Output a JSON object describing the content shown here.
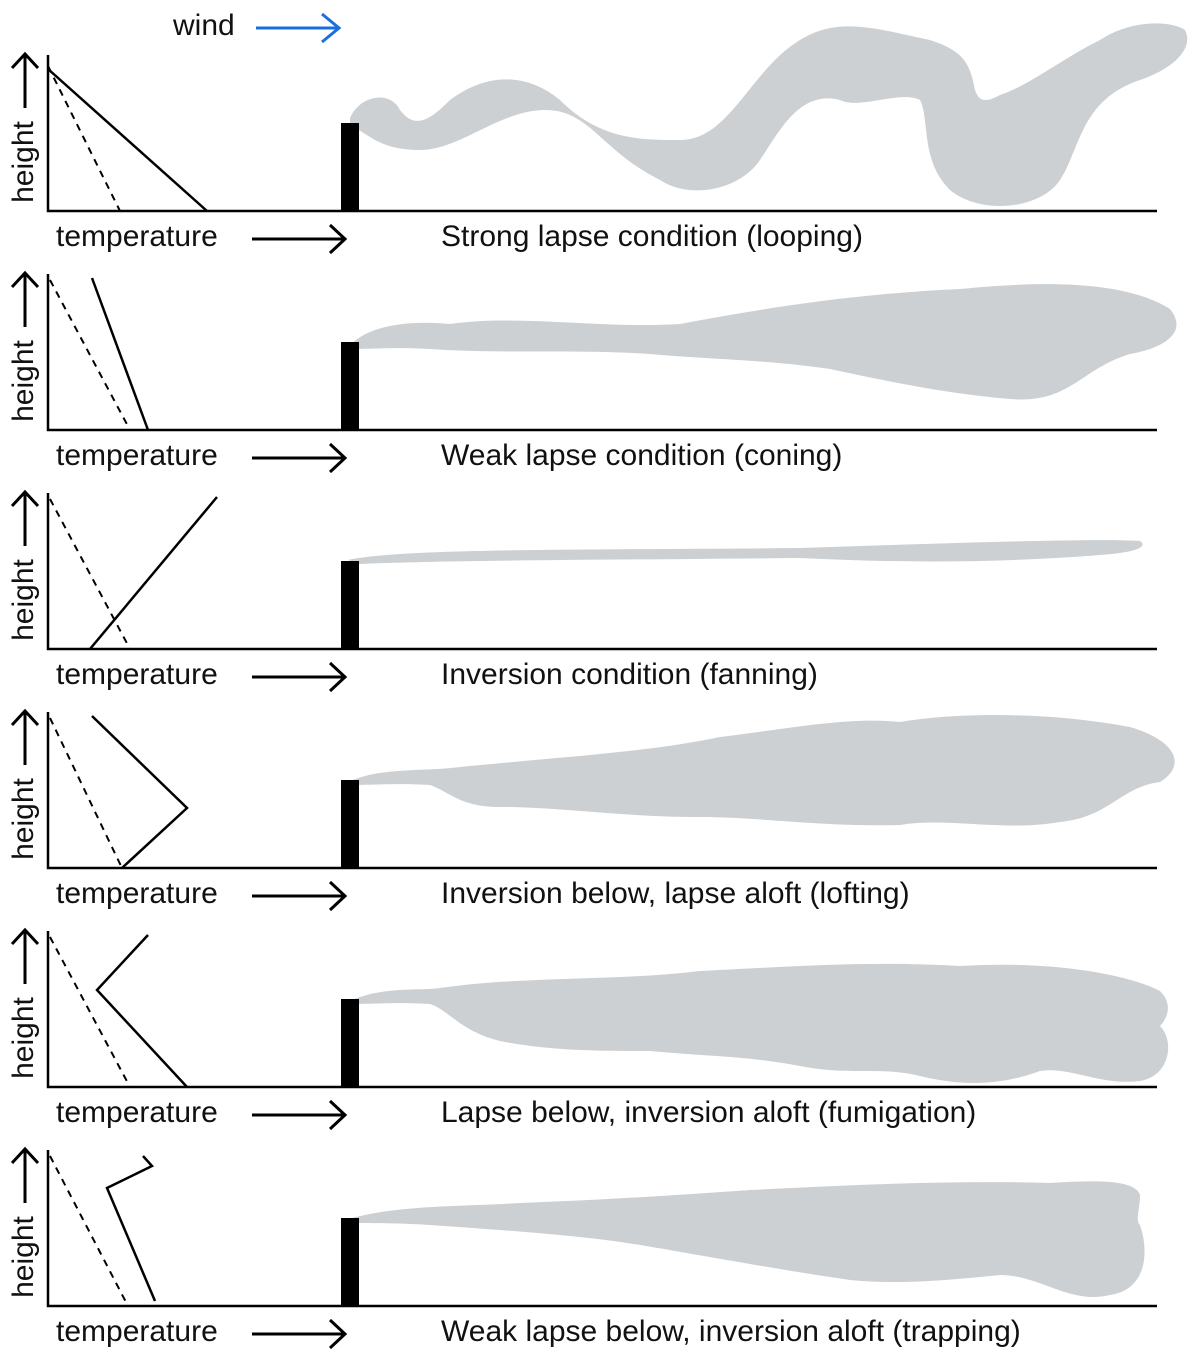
{
  "legend": {
    "wind": "wind"
  },
  "panels": [
    {
      "y_label": "height",
      "x_label": "temperature",
      "caption": "Strong lapse condition (looping)"
    },
    {
      "y_label": "height",
      "x_label": "temperature",
      "caption": "Weak lapse condition (coning)"
    },
    {
      "y_label": "height",
      "x_label": "temperature",
      "caption": "Inversion condition (fanning)"
    },
    {
      "y_label": "height",
      "x_label": "temperature",
      "caption": "Inversion below, lapse aloft (lofting)"
    },
    {
      "y_label": "height",
      "x_label": "temperature",
      "caption": "Lapse below, inversion aloft (fumigation)"
    },
    {
      "y_label": "height",
      "x_label": "temperature",
      "caption": "Weak lapse below, inversion aloft (trapping)"
    }
  ]
}
